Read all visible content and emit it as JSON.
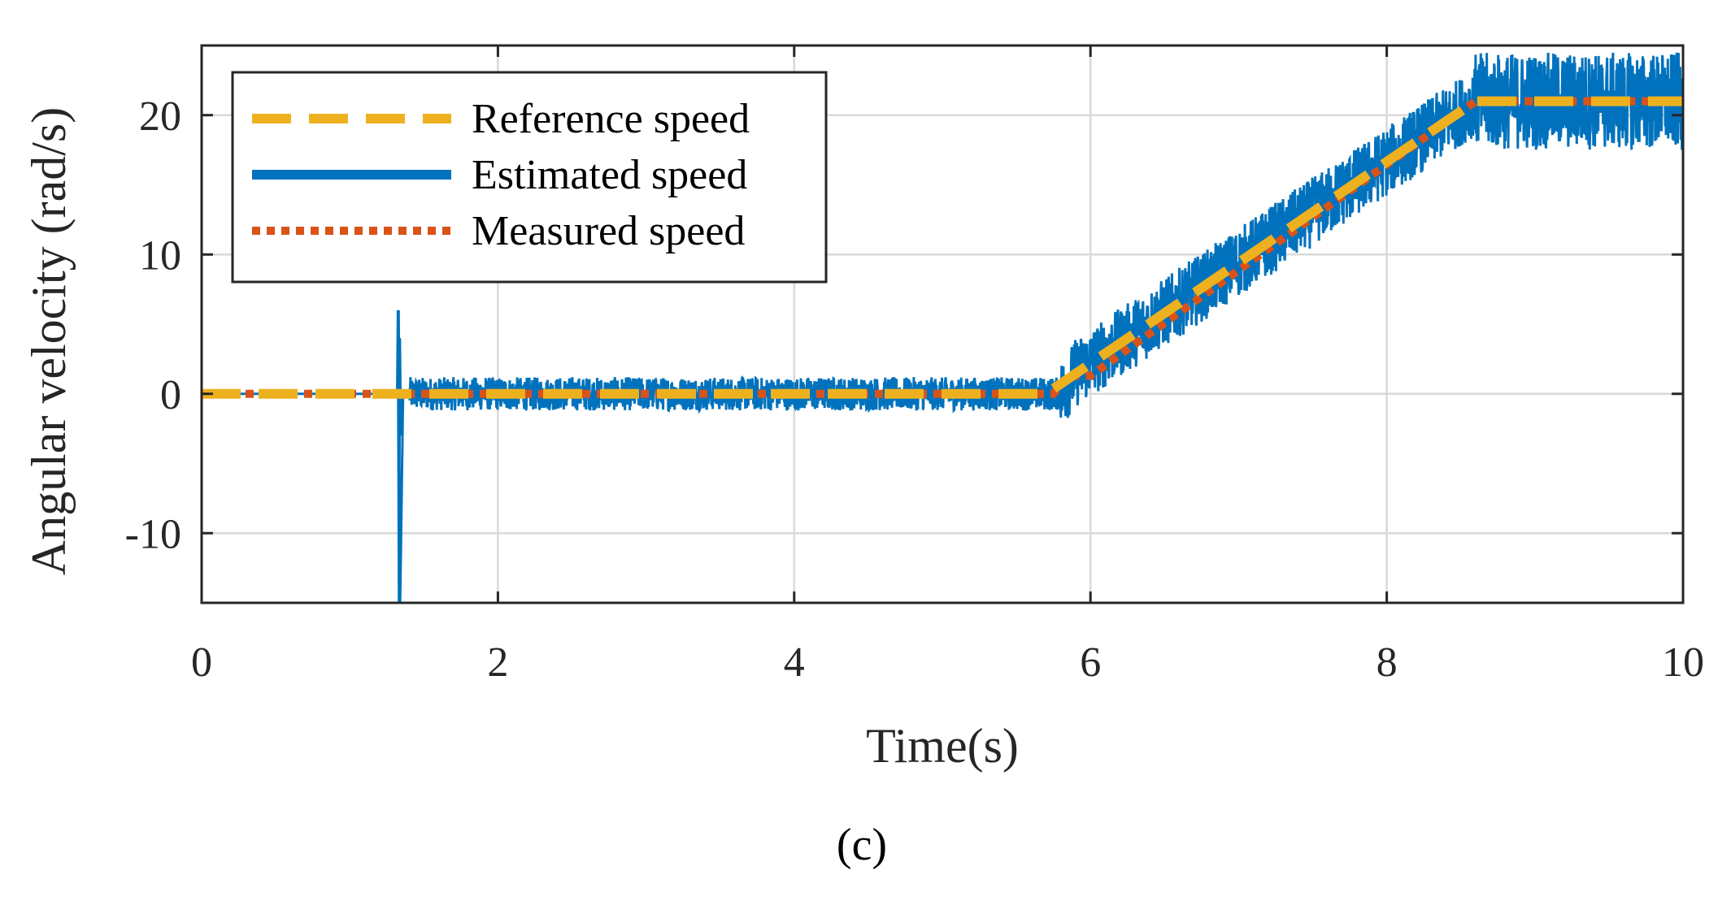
{
  "chart_data": {
    "type": "line",
    "title": "",
    "xlabel": "Time(s)",
    "ylabel": "Angular velocity (rad/s)",
    "caption_text": "(c)",
    "xlim": [
      0,
      10
    ],
    "ylim": [
      -15,
      25
    ],
    "xticks": [
      0,
      2,
      4,
      6,
      8,
      10
    ],
    "xtick_labels": [
      "0",
      "2",
      "4",
      "6",
      "8",
      "10"
    ],
    "yticks": [
      -10,
      0,
      10,
      20
    ],
    "ytick_labels": [
      "-10",
      "0",
      "10",
      "20"
    ],
    "grid": true,
    "legend_position": "top-left",
    "series": [
      {
        "name": "Reference speed",
        "style": "dashed",
        "color": "#EDB120",
        "x": [
          0,
          5.7,
          8.6,
          10
        ],
        "y": [
          0,
          0,
          21,
          21
        ]
      },
      {
        "name": "Estimated speed",
        "style": "solid-noisy",
        "color": "#0072BD",
        "x": [
          0,
          1.32,
          1.33,
          1.34,
          1.36,
          1.4,
          5.8,
          5.9,
          8.6,
          10
        ],
        "y": [
          0,
          0,
          6,
          -15,
          0,
          0,
          0,
          1.5,
          21,
          21
        ],
        "noise_band_amplitude": [
          {
            "x_start": 1.4,
            "x_end": 5.8,
            "amplitude": 1.2
          },
          {
            "x_start": 5.8,
            "x_end": 8.6,
            "amplitude": 2.5
          },
          {
            "x_start": 8.6,
            "x_end": 10,
            "amplitude": 3.5
          }
        ]
      },
      {
        "name": "Measured speed",
        "style": "dotted",
        "color": "#D95319",
        "x": [
          0,
          5.75,
          5.85,
          6.0,
          8.6,
          10
        ],
        "y": [
          0,
          0,
          1.3,
          1.3,
          21,
          21
        ]
      }
    ]
  }
}
